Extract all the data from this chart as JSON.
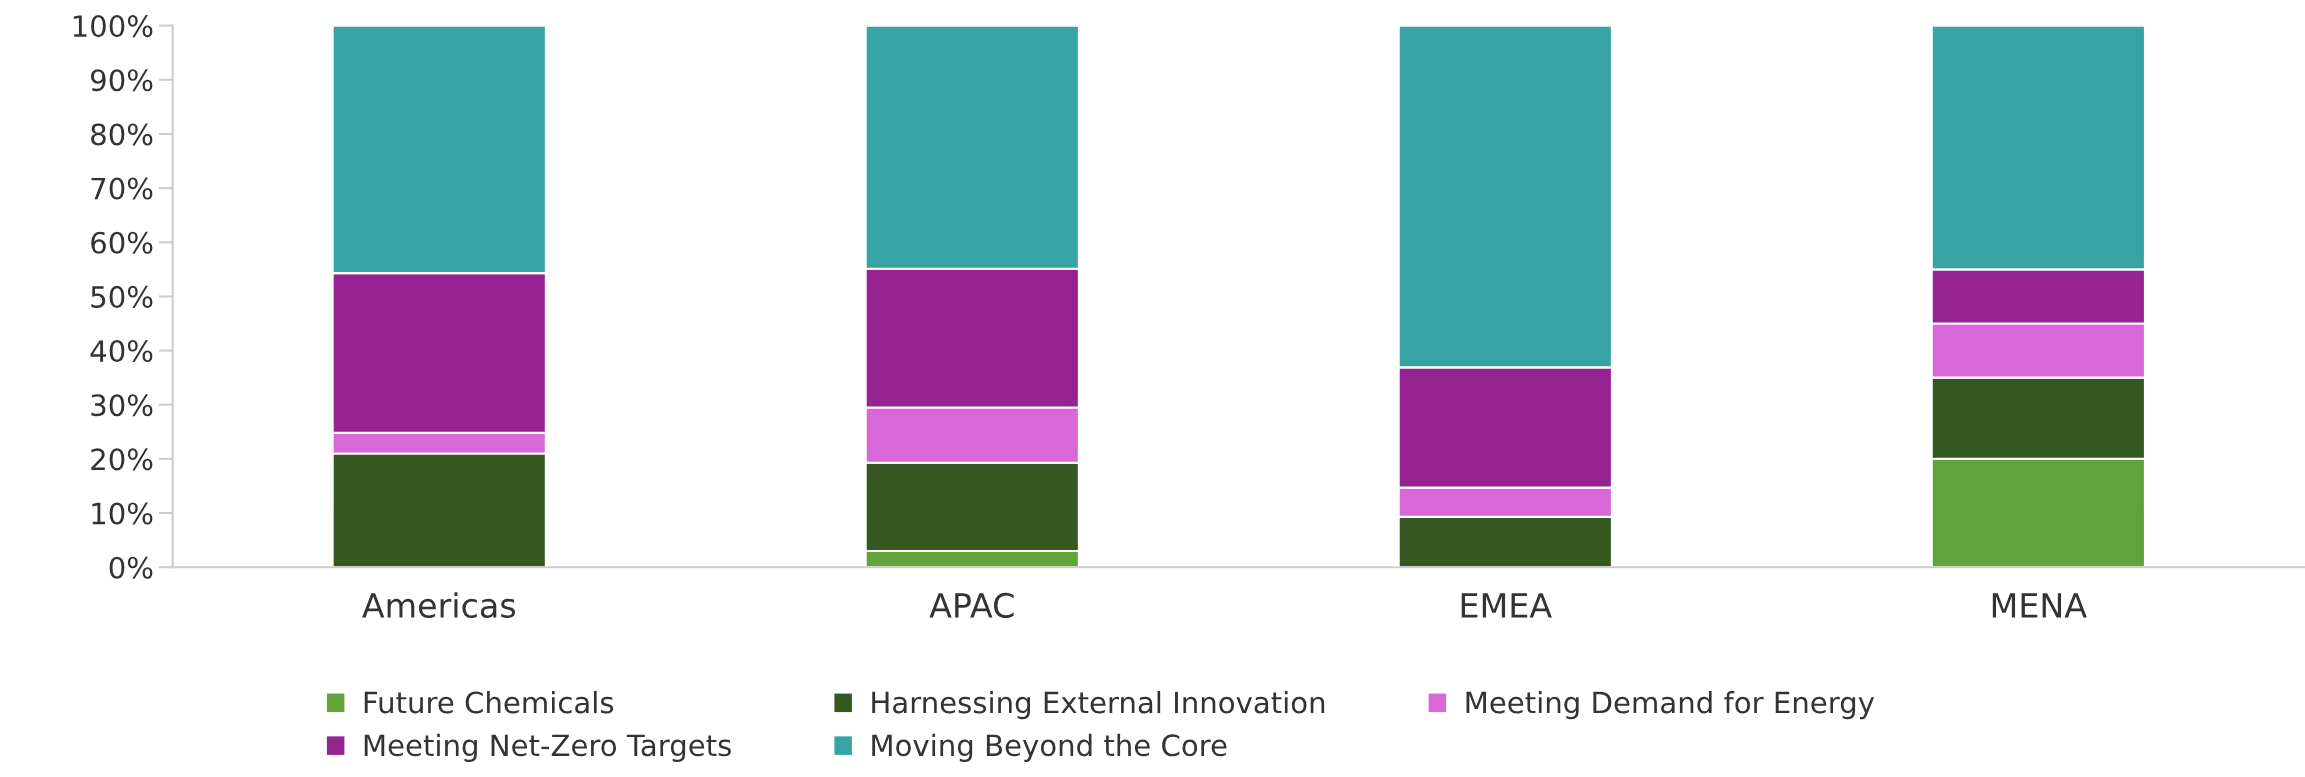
{
  "chart_data": {
    "type": "bar",
    "stacked": true,
    "categories": [
      "Americas",
      "APAC",
      "EMEA",
      "MENA"
    ],
    "series": [
      {
        "name": "Future Chemicals",
        "color": "#62a339",
        "values": [
          null,
          3,
          0,
          20
        ]
      },
      {
        "name": "Harnessing External Innovation",
        "color": "#355820",
        "values": [
          21.0,
          16.3,
          9.3,
          15
        ]
      },
      {
        "name": "Meeting Demand for Energy",
        "color": "#d868d8",
        "values": [
          3.8,
          10.2,
          5.4,
          10
        ]
      },
      {
        "name": "Meeting Net-Zero Targets",
        "color": "#952492",
        "values": [
          29.5,
          25.6,
          22.2,
          10
        ]
      },
      {
        "name": "Moving Beyond the Core",
        "color": "#38a3a3",
        "values": [
          45.7,
          44.9,
          63.1,
          45
        ]
      }
    ],
    "ylim": [
      0,
      100
    ],
    "yticks": [
      {
        "value": 0,
        "label": "0%"
      },
      {
        "value": 10,
        "label": "10%"
      },
      {
        "value": 20,
        "label": "20%"
      },
      {
        "value": 30,
        "label": "30%"
      },
      {
        "value": 40,
        "label": "40%"
      },
      {
        "value": 50,
        "label": "50%"
      },
      {
        "value": 60,
        "label": "60%"
      },
      {
        "value": 70,
        "label": "70%"
      },
      {
        "value": 80,
        "label": "80%"
      },
      {
        "value": 90,
        "label": "90%"
      },
      {
        "value": 100,
        "label": "100%"
      }
    ],
    "grid": false,
    "legend": "bottom"
  }
}
